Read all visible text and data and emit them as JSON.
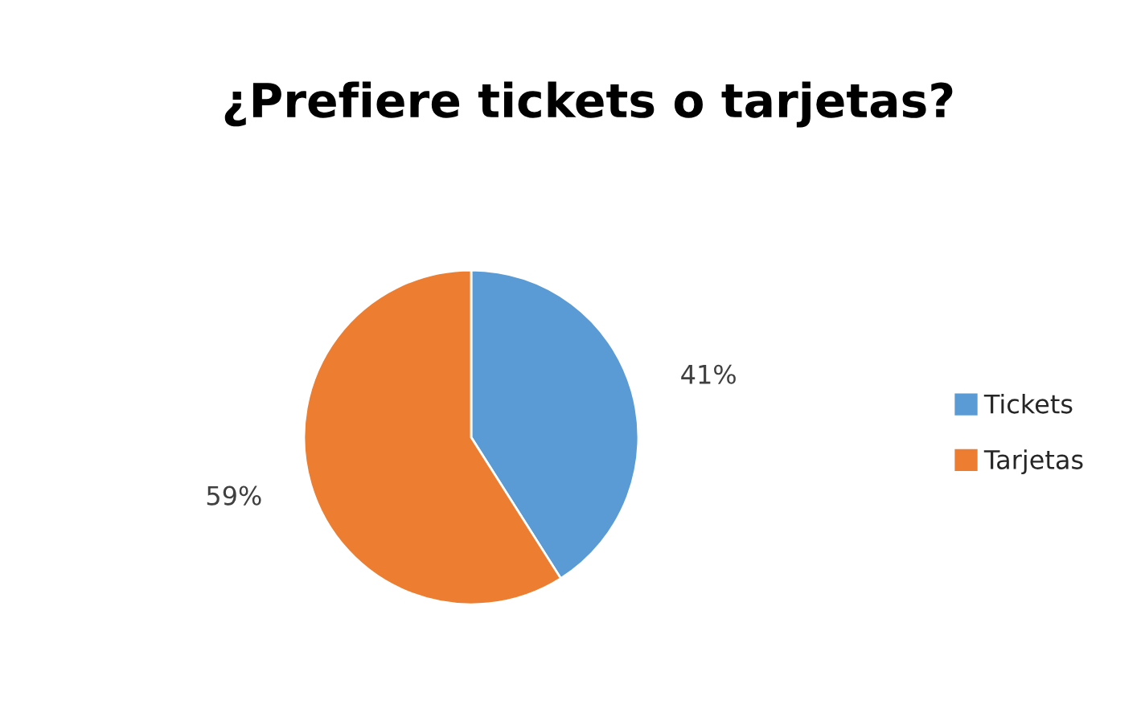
{
  "chart_data": {
    "type": "pie",
    "title": "¿Prefiere tickets o tarjetas?",
    "categories": [
      "Tickets",
      "Tarjetas"
    ],
    "values": [
      41,
      59
    ],
    "value_labels": [
      "41%",
      "59%"
    ],
    "colors": [
      "#5b9bd5",
      "#ed7d31"
    ],
    "legend": "right"
  }
}
